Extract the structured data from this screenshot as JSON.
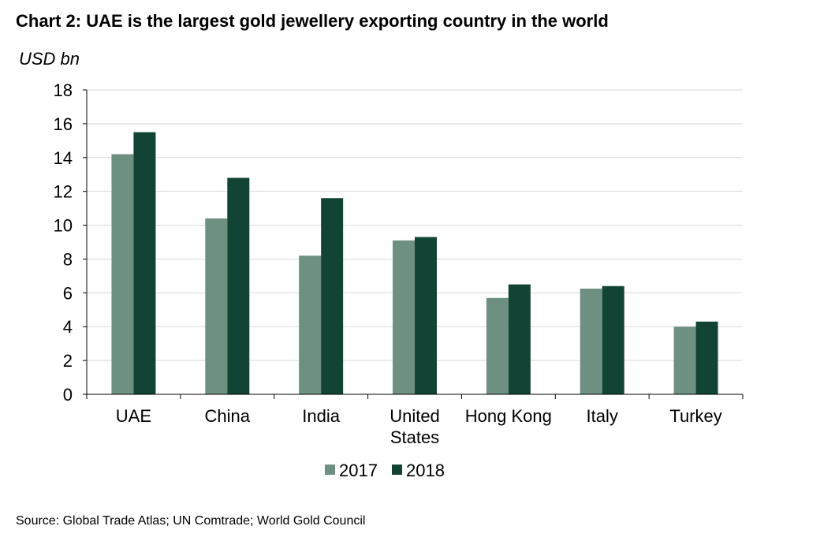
{
  "title": "Chart 2: UAE is the largest gold jewellery exporting country in the world",
  "source": "Source: Global Trade Atlas; UN Comtrade; World Gold Council",
  "colors": {
    "series_2017": "#6e9080",
    "series_2018": "#114434",
    "gridline": "#d9d9d9",
    "axis": "#000000"
  },
  "chart_data": {
    "type": "bar",
    "title": "Chart 2: UAE is the largest gold jewellery exporting country in the world",
    "ylabel": "USD bn",
    "xlabel": "",
    "ylim": [
      0,
      18
    ],
    "yticks": [
      0,
      2,
      4,
      6,
      8,
      10,
      12,
      14,
      16,
      18
    ],
    "grid": true,
    "legend": "bottom-center",
    "categories": [
      [
        "UAE"
      ],
      [
        "China"
      ],
      [
        "India"
      ],
      [
        "United",
        "States"
      ],
      [
        "Hong Kong"
      ],
      [
        "Italy"
      ],
      [
        "Turkey"
      ]
    ],
    "series": [
      {
        "name": "2017",
        "values": [
          14.2,
          10.4,
          8.2,
          9.1,
          5.7,
          6.25,
          4.0
        ]
      },
      {
        "name": "2018",
        "values": [
          15.5,
          12.8,
          11.6,
          9.3,
          6.5,
          6.4,
          4.3
        ]
      }
    ]
  }
}
